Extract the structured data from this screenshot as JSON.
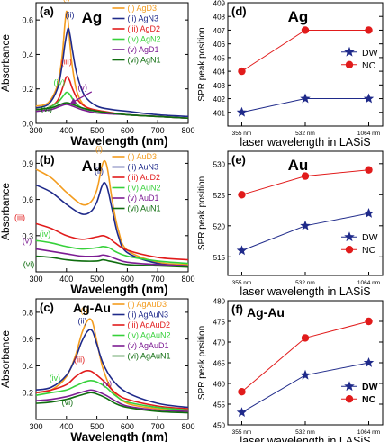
{
  "chart_data": [
    {
      "id": "a",
      "type": "line",
      "panel_label": "(a)",
      "element_label": "Ag",
      "xlabel": "Wavelength (nm)",
      "ylabel": "Absorbance",
      "xlim": [
        300,
        800
      ],
      "ylim": [
        0,
        0.7
      ],
      "xticks": [
        300,
        400,
        500,
        600,
        700,
        800
      ],
      "yticks": [
        0.0,
        0.2,
        0.4,
        0.6
      ],
      "ytick_labels": [
        "0.0",
        "0.2",
        "0.4",
        "0.6"
      ],
      "legend_position": "top-right",
      "series": [
        {
          "name": "(i) AgD3",
          "color": "#f39c1f",
          "peak_tag": "(i)",
          "x": [
            300,
            340,
            370,
            385,
            395,
            400,
            405,
            412,
            420,
            435,
            460,
            500,
            550,
            600,
            700,
            800
          ],
          "values": [
            0.1,
            0.12,
            0.22,
            0.38,
            0.58,
            0.65,
            0.6,
            0.45,
            0.32,
            0.18,
            0.1,
            0.07,
            0.06,
            0.05,
            0.04,
            0.03
          ]
        },
        {
          "name": "(ii) AgN3",
          "color": "#1f2a8a",
          "peak_tag": "(ii)",
          "x": [
            300,
            340,
            370,
            385,
            395,
            405,
            412,
            420,
            435,
            460,
            500,
            550,
            600,
            700,
            800
          ],
          "values": [
            0.09,
            0.11,
            0.2,
            0.33,
            0.46,
            0.55,
            0.51,
            0.42,
            0.28,
            0.16,
            0.1,
            0.08,
            0.07,
            0.05,
            0.04
          ]
        },
        {
          "name": "(iii) AgD2",
          "color": "#e11b1b",
          "peak_tag": "(iii)",
          "x": [
            300,
            340,
            370,
            390,
            400,
            410,
            420,
            440,
            470,
            520,
            600,
            700,
            800
          ],
          "values": [
            0.08,
            0.09,
            0.13,
            0.22,
            0.27,
            0.25,
            0.2,
            0.13,
            0.09,
            0.07,
            0.05,
            0.04,
            0.03
          ]
        },
        {
          "name": "(iv) AgN2",
          "color": "#36d13a",
          "peak_tag": "(iv)",
          "x": [
            300,
            340,
            370,
            390,
            400,
            410,
            425,
            450,
            500,
            600,
            700,
            800
          ],
          "values": [
            0.08,
            0.09,
            0.12,
            0.16,
            0.18,
            0.17,
            0.13,
            0.09,
            0.07,
            0.05,
            0.04,
            0.03
          ]
        },
        {
          "name": "(v) AgD1",
          "color": "#7d1c93",
          "peak_tag": "(v)",
          "x": [
            300,
            350,
            380,
            400,
            420,
            450,
            500,
            600,
            700,
            800
          ],
          "values": [
            0.07,
            0.08,
            0.1,
            0.11,
            0.1,
            0.08,
            0.06,
            0.05,
            0.04,
            0.03
          ]
        },
        {
          "name": "(vi) AgN1",
          "color": "#0f6d0f",
          "peak_tag": "(vi)",
          "x": [
            300,
            350,
            380,
            400,
            420,
            450,
            500,
            600,
            700,
            800
          ],
          "values": [
            0.08,
            0.09,
            0.11,
            0.12,
            0.11,
            0.09,
            0.07,
            0.05,
            0.04,
            0.03
          ]
        }
      ]
    },
    {
      "id": "b",
      "type": "line",
      "panel_label": "(b)",
      "element_label": "Au",
      "xlabel": "Wavelength (nm)",
      "ylabel": "Absorbance",
      "xlim": [
        300,
        800
      ],
      "ylim": [
        0,
        1.0
      ],
      "xticks": [
        300,
        400,
        500,
        600,
        700,
        800
      ],
      "yticks": [
        0.3,
        0.6,
        0.9
      ],
      "ytick_labels": [
        "0.3",
        "0.6",
        "0.9"
      ],
      "legend_position": "top-right",
      "series": [
        {
          "name": "(i) AuD3",
          "color": "#f39c1f",
          "peak_tag": "(i)",
          "x": [
            300,
            350,
            400,
            450,
            480,
            500,
            515,
            525,
            535,
            550,
            570,
            600,
            700,
            800
          ],
          "values": [
            0.85,
            0.78,
            0.66,
            0.56,
            0.58,
            0.68,
            0.86,
            0.92,
            0.85,
            0.6,
            0.35,
            0.18,
            0.08,
            0.06
          ]
        },
        {
          "name": "(ii) AuN3",
          "color": "#1f2a8a",
          "peak_tag": "(ii)",
          "x": [
            300,
            350,
            400,
            450,
            480,
            500,
            515,
            525,
            535,
            550,
            570,
            600,
            700,
            800
          ],
          "values": [
            0.72,
            0.66,
            0.56,
            0.48,
            0.5,
            0.58,
            0.7,
            0.74,
            0.69,
            0.52,
            0.3,
            0.16,
            0.07,
            0.05
          ]
        },
        {
          "name": "(iii) AuD2",
          "color": "#e11b1b",
          "peak_tag": "(iii)",
          "x": [
            300,
            350,
            400,
            450,
            500,
            520,
            540,
            560,
            600,
            700,
            800
          ],
          "values": [
            0.4,
            0.36,
            0.3,
            0.27,
            0.29,
            0.3,
            0.28,
            0.24,
            0.18,
            0.12,
            0.1
          ]
        },
        {
          "name": "(iv) AuN2",
          "color": "#36d13a",
          "peak_tag": "(iv)",
          "x": [
            300,
            350,
            400,
            450,
            500,
            520,
            540,
            560,
            600,
            700,
            800
          ],
          "values": [
            0.26,
            0.24,
            0.21,
            0.19,
            0.2,
            0.21,
            0.2,
            0.17,
            0.13,
            0.09,
            0.07
          ]
        },
        {
          "name": "(v) AuD1",
          "color": "#7d1c93",
          "peak_tag": "(v)",
          "x": [
            300,
            350,
            400,
            450,
            500,
            520,
            540,
            560,
            600,
            700,
            800
          ],
          "values": [
            0.19,
            0.17,
            0.15,
            0.13,
            0.13,
            0.14,
            0.13,
            0.11,
            0.08,
            0.06,
            0.05
          ]
        },
        {
          "name": "(vi) AuN1",
          "color": "#0f6d0f",
          "peak_tag": "(vi)",
          "x": [
            300,
            350,
            400,
            450,
            500,
            520,
            540,
            560,
            600,
            700,
            800
          ],
          "values": [
            0.13,
            0.12,
            0.1,
            0.09,
            0.09,
            0.1,
            0.09,
            0.08,
            0.06,
            0.05,
            0.04
          ]
        }
      ]
    },
    {
      "id": "c",
      "type": "line",
      "panel_label": "(c)",
      "element_label": "Ag-Au",
      "xlabel": "Wavelength (nm)",
      "ylabel": "Absorbance",
      "xlim": [
        300,
        800
      ],
      "ylim": [
        0,
        0.9
      ],
      "xticks": [
        300,
        400,
        500,
        600,
        700,
        800
      ],
      "yticks": [
        0.2,
        0.4,
        0.6,
        0.8
      ],
      "ytick_labels": [
        "0.2",
        "0.4",
        "0.6",
        "0.8"
      ],
      "legend_position": "top-right",
      "series": [
        {
          "name": "(i) AgAuD3",
          "color": "#f39c1f",
          "peak_tag": "(i)",
          "x": [
            300,
            350,
            400,
            430,
            450,
            470,
            485,
            500,
            520,
            550,
            600,
            700,
            800
          ],
          "values": [
            0.2,
            0.22,
            0.32,
            0.48,
            0.64,
            0.74,
            0.73,
            0.58,
            0.38,
            0.22,
            0.12,
            0.08,
            0.06
          ]
        },
        {
          "name": "(ii) AgAuN3",
          "color": "#1f2a8a",
          "peak_tag": "(ii)",
          "x": [
            300,
            350,
            400,
            430,
            450,
            470,
            485,
            500,
            520,
            550,
            600,
            700,
            800
          ],
          "values": [
            0.22,
            0.24,
            0.33,
            0.46,
            0.58,
            0.66,
            0.66,
            0.56,
            0.42,
            0.3,
            0.2,
            0.12,
            0.09
          ]
        },
        {
          "name": "(iii) AgAuD2",
          "color": "#e11b1b",
          "peak_tag": "(iii)",
          "x": [
            300,
            350,
            400,
            430,
            460,
            480,
            500,
            530,
            560,
            600,
            700,
            800
          ],
          "values": [
            0.2,
            0.22,
            0.26,
            0.32,
            0.36,
            0.36,
            0.33,
            0.27,
            0.2,
            0.15,
            0.1,
            0.08
          ]
        },
        {
          "name": "(iv) AgAuN2",
          "color": "#36d13a",
          "peak_tag": "(iv)",
          "x": [
            300,
            350,
            400,
            430,
            460,
            480,
            500,
            530,
            560,
            600,
            700,
            800
          ],
          "values": [
            0.18,
            0.2,
            0.22,
            0.25,
            0.28,
            0.29,
            0.28,
            0.24,
            0.18,
            0.13,
            0.09,
            0.07
          ]
        },
        {
          "name": "(v) AgAuD1",
          "color": "#7d1c93",
          "peak_tag": "(v)",
          "x": [
            300,
            350,
            400,
            430,
            460,
            480,
            500,
            530,
            560,
            600,
            700,
            800
          ],
          "values": [
            0.14,
            0.15,
            0.17,
            0.19,
            0.21,
            0.22,
            0.21,
            0.18,
            0.14,
            0.1,
            0.07,
            0.06
          ]
        },
        {
          "name": "(vi) AgAuN1",
          "color": "#0f6d0f",
          "peak_tag": "(vi)",
          "x": [
            300,
            350,
            400,
            430,
            460,
            480,
            500,
            530,
            560,
            600,
            700,
            800
          ],
          "values": [
            0.12,
            0.13,
            0.15,
            0.17,
            0.19,
            0.2,
            0.19,
            0.16,
            0.12,
            0.09,
            0.06,
            0.05
          ]
        }
      ]
    },
    {
      "id": "d",
      "type": "line",
      "panel_label": "(d)",
      "element_label": "Ag",
      "xlabel": "laser wavelength in LASiS",
      "ylabel": "SPR peak position",
      "categories": [
        "355 nm",
        "532 nm",
        "1064 nm"
      ],
      "ylim": [
        400,
        409
      ],
      "yticks": [
        401,
        402,
        403,
        404,
        405,
        406,
        407,
        408,
        409
      ],
      "legend_position": "center-right",
      "series": [
        {
          "name": "DW",
          "color": "#1f2a8a",
          "marker": "star",
          "values": [
            401,
            402,
            402
          ]
        },
        {
          "name": "NC",
          "color": "#e11b1b",
          "marker": "circle",
          "values": [
            404,
            407,
            407
          ]
        }
      ]
    },
    {
      "id": "e",
      "type": "line",
      "panel_label": "(e)",
      "element_label": "Au",
      "xlabel": "laser wavelength in LASiS",
      "ylabel": "SPR peak position",
      "categories": [
        "355 nm",
        "532 nm",
        "1064 nm"
      ],
      "ylim": [
        512,
        532
      ],
      "yticks": [
        515,
        520,
        525,
        530
      ],
      "legend_position": "bottom-right",
      "series": [
        {
          "name": "DW",
          "color": "#1f2a8a",
          "marker": "star",
          "values": [
            516,
            520,
            522
          ]
        },
        {
          "name": "NC",
          "color": "#e11b1b",
          "marker": "circle",
          "values": [
            525,
            528,
            529
          ]
        }
      ]
    },
    {
      "id": "f",
      "type": "line",
      "panel_label": "(f)",
      "element_label": "Ag-Au",
      "xlabel": "laser wavelength in LASiS",
      "ylabel": "SPR peak position",
      "categories": [
        "355 nm",
        "532 nm",
        "1064 nm"
      ],
      "ylim": [
        450,
        480
      ],
      "yticks": [
        450,
        455,
        460,
        465,
        470,
        475,
        480
      ],
      "legend_position": "bottom-right",
      "series": [
        {
          "name": "DW",
          "color": "#1f2a8a",
          "marker": "star",
          "values": [
            453,
            462,
            465
          ]
        },
        {
          "name": "NC",
          "color": "#e11b1b",
          "marker": "circle",
          "values": [
            458,
            471,
            475
          ]
        }
      ]
    }
  ]
}
